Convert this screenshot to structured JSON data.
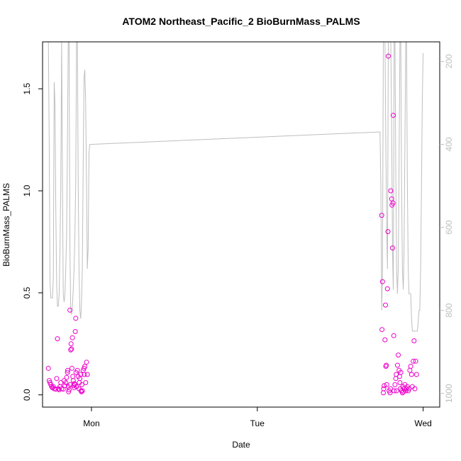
{
  "chart_data": {
    "type": "scatter",
    "title": "ATOM2 Northeast_Pacific_2 BioBurnMass_PALMS",
    "xlabel": "Date",
    "ylabel": "BioBurnMass_PALMS",
    "x_ticks": [
      {
        "label": "Mon",
        "value": 0
      },
      {
        "label": "Tue",
        "value": 1
      },
      {
        "label": "Wed",
        "value": 2
      }
    ],
    "xlim": [
      -0.295,
      2.1
    ],
    "ylim": [
      -0.06,
      1.73
    ],
    "y_ticks": [
      0.0,
      0.5,
      1.0,
      1.5
    ],
    "y_tick_labels": [
      "0.0",
      "0.5",
      "1.0",
      "1.5"
    ],
    "y2_ticks": [
      200,
      400,
      600,
      800,
      1000
    ],
    "y2lim": [
      1033,
      153
    ],
    "y2_reversed": true,
    "grid": false,
    "colors": {
      "points": "#ee00cc",
      "altitude_line": "#bebebe",
      "axes": "#000000",
      "y2_axis": "#bebebe"
    },
    "points": [
      [
        -0.26,
        0.13
      ],
      [
        -0.255,
        0.07
      ],
      [
        -0.25,
        0.06
      ],
      [
        -0.245,
        0.05
      ],
      [
        -0.24,
        0.04
      ],
      [
        -0.235,
        0.035
      ],
      [
        -0.23,
        0.04
      ],
      [
        -0.225,
        0.03
      ],
      [
        -0.215,
        0.028
      ],
      [
        -0.21,
        0.08
      ],
      [
        -0.205,
        0.275
      ],
      [
        -0.2,
        0.03
      ],
      [
        -0.195,
        0.025
      ],
      [
        -0.19,
        0.04
      ],
      [
        -0.185,
        0.06
      ],
      [
        -0.18,
        0.03
      ],
      [
        -0.17,
        0.028
      ],
      [
        -0.165,
        0.07
      ],
      [
        -0.16,
        0.045
      ],
      [
        -0.155,
        0.06
      ],
      [
        -0.15,
        0.085
      ],
      [
        -0.145,
        0.11
      ],
      [
        -0.143,
        0.12
      ],
      [
        -0.14,
        0.04
      ],
      [
        -0.138,
        0.015
      ],
      [
        -0.135,
        0.025
      ],
      [
        -0.13,
        0.415
      ],
      [
        -0.128,
        0.05
      ],
      [
        -0.125,
        0.22
      ],
      [
        -0.123,
        0.25
      ],
      [
        -0.12,
        0.225
      ],
      [
        -0.118,
        0.13
      ],
      [
        -0.115,
        0.28
      ],
      [
        -0.113,
        0.09
      ],
      [
        -0.11,
        0.07
      ],
      [
        -0.108,
        0.045
      ],
      [
        -0.105,
        0.035
      ],
      [
        -0.103,
        0.055
      ],
      [
        -0.1,
        0.05
      ],
      [
        -0.098,
        0.31
      ],
      [
        -0.095,
        0.375
      ],
      [
        -0.093,
        0.11
      ],
      [
        -0.09,
        0.04
      ],
      [
        -0.085,
        0.12
      ],
      [
        -0.08,
        0.09
      ],
      [
        -0.075,
        0.03
      ],
      [
        -0.073,
        0.06
      ],
      [
        -0.07,
        0.08
      ],
      [
        -0.065,
        0.1
      ],
      [
        -0.063,
        0.02
      ],
      [
        -0.06,
        0.015
      ],
      [
        -0.058,
        0.05
      ],
      [
        -0.055,
        0.02
      ],
      [
        -0.05,
        0.12
      ],
      [
        -0.045,
        0.13
      ],
      [
        -0.043,
        0.1
      ],
      [
        -0.04,
        0.14
      ],
      [
        -0.035,
        0.06
      ],
      [
        -0.03,
        0.16
      ],
      [
        -0.025,
        0.1
      ],
      [
        1.75,
        0.88
      ],
      [
        1.752,
        0.32
      ],
      [
        1.755,
        0.555
      ],
      [
        1.76,
        0.01
      ],
      [
        1.762,
        0.03
      ],
      [
        1.765,
        0.045
      ],
      [
        1.77,
        0.27
      ],
      [
        1.773,
        0.44
      ],
      [
        1.775,
        0.14
      ],
      [
        1.778,
        0.145
      ],
      [
        1.78,
        0.05
      ],
      [
        1.785,
        0.52
      ],
      [
        1.788,
        0.8
      ],
      [
        1.79,
        1.66
      ],
      [
        1.795,
        0.02
      ],
      [
        1.8,
        0.01
      ],
      [
        1.803,
        0.03
      ],
      [
        1.805,
        1.0
      ],
      [
        1.81,
        0.96
      ],
      [
        1.812,
        0.93
      ],
      [
        1.815,
        0.72
      ],
      [
        1.818,
        0.94
      ],
      [
        1.82,
        1.37
      ],
      [
        1.823,
        0.29
      ],
      [
        1.825,
        0.02
      ],
      [
        1.83,
        0.05
      ],
      [
        1.835,
        0.08
      ],
      [
        1.838,
        0.1
      ],
      [
        1.84,
        0.02
      ],
      [
        1.845,
        0.145
      ],
      [
        1.85,
        0.195
      ],
      [
        1.855,
        0.12
      ],
      [
        1.858,
        0.09
      ],
      [
        1.86,
        0.06
      ],
      [
        1.863,
        0.03
      ],
      [
        1.865,
        0.11
      ],
      [
        1.87,
        0.02
      ],
      [
        1.875,
        0.01
      ],
      [
        1.878,
        0.04
      ],
      [
        1.88,
        0.015
      ],
      [
        1.885,
        0.03
      ],
      [
        1.89,
        0.05
      ],
      [
        1.895,
        0.02
      ],
      [
        1.9,
        0.03
      ],
      [
        1.905,
        0.04
      ],
      [
        1.91,
        0.02
      ],
      [
        1.915,
        0.03
      ],
      [
        1.92,
        0.12
      ],
      [
        1.925,
        0.14
      ],
      [
        1.93,
        0.1
      ],
      [
        1.935,
        0.04
      ],
      [
        1.94,
        0.165
      ],
      [
        1.945,
        0.265
      ],
      [
        1.95,
        0.03
      ],
      [
        1.955,
        0.165
      ],
      [
        1.96,
        0.1
      ]
    ],
    "altitude_line": [
      [
        -0.265,
        153
      ],
      [
        -0.26,
        153
      ],
      [
        -0.255,
        400
      ],
      [
        -0.25,
        730
      ],
      [
        -0.245,
        770
      ],
      [
        -0.24,
        770
      ],
      [
        -0.235,
        770
      ],
      [
        -0.23,
        720
      ],
      [
        -0.225,
        250
      ],
      [
        -0.22,
        300
      ],
      [
        -0.215,
        560
      ],
      [
        -0.21,
        740
      ],
      [
        -0.205,
        790
      ],
      [
        -0.2,
        790
      ],
      [
        -0.195,
        760
      ],
      [
        -0.19,
        650
      ],
      [
        -0.185,
        500
      ],
      [
        -0.18,
        150
      ],
      [
        -0.175,
        500
      ],
      [
        -0.17,
        760
      ],
      [
        -0.165,
        780
      ],
      [
        -0.16,
        760
      ],
      [
        -0.155,
        700
      ],
      [
        -0.15,
        620
      ],
      [
        -0.145,
        400
      ],
      [
        -0.14,
        153
      ],
      [
        -0.135,
        153
      ],
      [
        -0.13,
        650
      ],
      [
        -0.125,
        800
      ],
      [
        -0.12,
        810
      ],
      [
        -0.115,
        790
      ],
      [
        -0.11,
        750
      ],
      [
        -0.105,
        700
      ],
      [
        -0.1,
        620
      ],
      [
        -0.095,
        490
      ],
      [
        -0.09,
        153
      ],
      [
        -0.085,
        153
      ],
      [
        -0.08,
        500
      ],
      [
        -0.075,
        700
      ],
      [
        -0.07,
        800
      ],
      [
        -0.065,
        820
      ],
      [
        -0.06,
        780
      ],
      [
        -0.055,
        700
      ],
      [
        -0.05,
        450
      ],
      [
        -0.045,
        240
      ],
      [
        -0.04,
        220
      ],
      [
        -0.035,
        300
      ],
      [
        -0.03,
        500
      ],
      [
        -0.025,
        700
      ],
      [
        -0.02,
        650
      ],
      [
        -0.015,
        420
      ],
      [
        -0.01,
        400
      ],
      [
        1.74,
        370
      ],
      [
        1.745,
        500
      ],
      [
        1.75,
        800
      ],
      [
        1.755,
        700
      ],
      [
        1.76,
        153
      ],
      [
        1.765,
        153
      ],
      [
        1.77,
        153
      ],
      [
        1.775,
        400
      ],
      [
        1.78,
        600
      ],
      [
        1.785,
        700
      ],
      [
        1.79,
        153
      ],
      [
        1.795,
        153
      ],
      [
        1.8,
        153
      ],
      [
        1.805,
        153
      ],
      [
        1.81,
        350
      ],
      [
        1.815,
        650
      ],
      [
        1.82,
        750
      ],
      [
        1.825,
        153
      ],
      [
        1.83,
        153
      ],
      [
        1.835,
        450
      ],
      [
        1.84,
        700
      ],
      [
        1.845,
        760
      ],
      [
        1.85,
        700
      ],
      [
        1.855,
        450
      ],
      [
        1.86,
        153
      ],
      [
        1.865,
        153
      ],
      [
        1.87,
        500
      ],
      [
        1.875,
        700
      ],
      [
        1.88,
        750
      ],
      [
        1.885,
        650
      ],
      [
        1.89,
        400
      ],
      [
        1.895,
        153
      ],
      [
        1.9,
        153
      ],
      [
        1.905,
        500
      ],
      [
        1.91,
        700
      ],
      [
        1.915,
        760
      ],
      [
        1.92,
        760
      ],
      [
        1.925,
        760
      ],
      [
        1.93,
        820
      ],
      [
        1.935,
        850
      ],
      [
        1.94,
        850
      ],
      [
        1.945,
        850
      ],
      [
        1.95,
        850
      ],
      [
        1.955,
        850
      ],
      [
        1.96,
        850
      ],
      [
        1.965,
        850
      ],
      [
        1.97,
        830
      ],
      [
        1.975,
        800
      ],
      [
        1.98,
        800
      ],
      [
        1.985,
        700
      ],
      [
        1.99,
        500
      ],
      [
        1.995,
        300
      ],
      [
        2.0,
        180
      ]
    ]
  }
}
